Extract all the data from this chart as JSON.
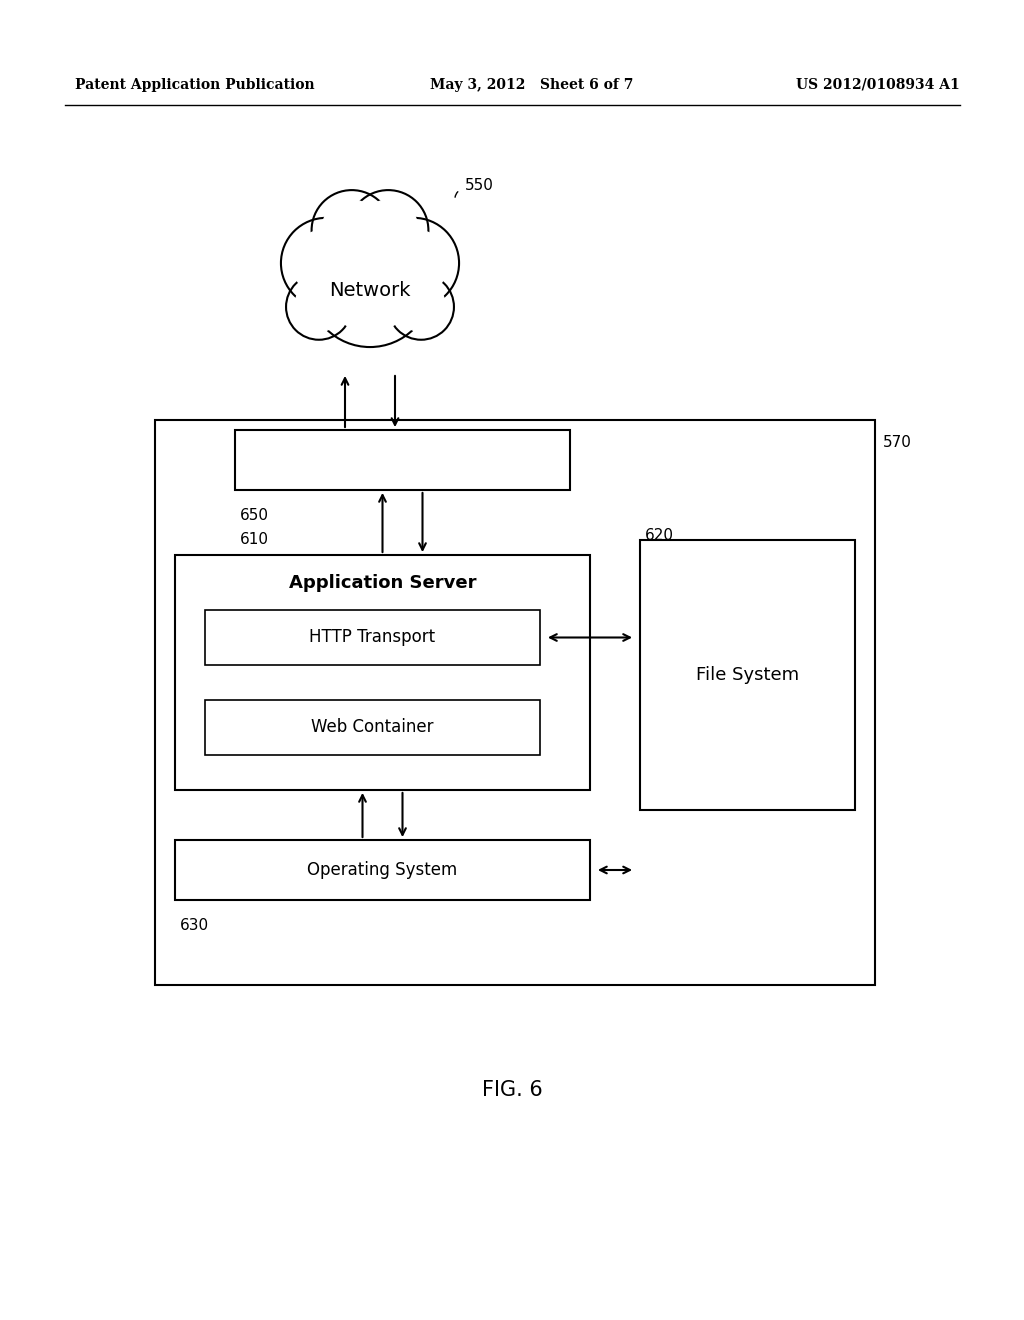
{
  "bg_color": "#ffffff",
  "header_left": "Patent Application Publication",
  "header_mid": "May 3, 2012   Sheet 6 of 7",
  "header_right": "US 2012/0108934 A1",
  "fig_label": "FIG. 6",
  "cloud_label": "550",
  "cloud_text": "Network",
  "outer_box_label": "570",
  "label_650": "650",
  "label_610": "610",
  "app_server_title": "Application Server",
  "http_text": "HTTP Transport",
  "web_text": "Web Container",
  "label_620": "620",
  "file_system_text": "File System",
  "os_text": "Operating System",
  "label_630": "630"
}
